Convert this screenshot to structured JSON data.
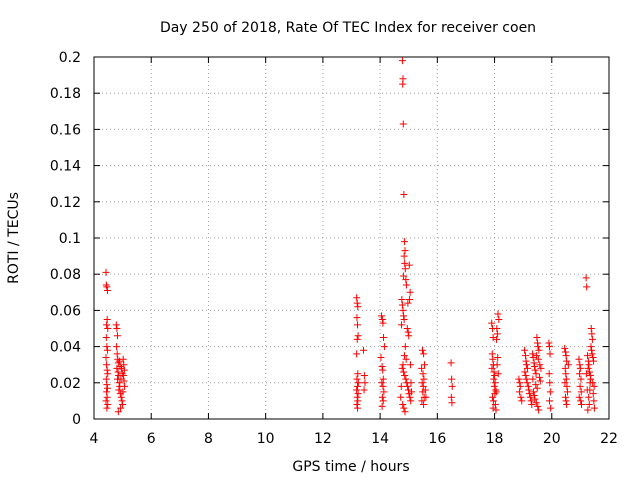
{
  "chart_data": {
    "type": "scatter",
    "title": "Day 250 of 2018, Rate Of TEC Index for receiver coen",
    "xlabel": "GPS time / hours",
    "ylabel": "ROTI / TECUs",
    "xlim": [
      4,
      22
    ],
    "ylim": [
      0,
      0.2
    ],
    "x_ticks": [
      "4",
      "6",
      "8",
      "10",
      "12",
      "14",
      "16",
      "18",
      "20",
      "22"
    ],
    "y_ticks": [
      "0",
      "0.02",
      "0.04",
      "0.06",
      "0.08",
      "0.1",
      "0.12",
      "0.14",
      "0.16",
      "0.18",
      "0.2"
    ],
    "grid": true,
    "marker": "+",
    "marker_color": "#ff0000",
    "series": [
      {
        "name": "ROTI",
        "points": [
          [
            4.42,
            0.081
          ],
          [
            4.43,
            0.074
          ],
          [
            4.45,
            0.073
          ],
          [
            4.47,
            0.071
          ],
          [
            4.46,
            0.055
          ],
          [
            4.44,
            0.052
          ],
          [
            4.48,
            0.05
          ],
          [
            4.43,
            0.045
          ],
          [
            4.45,
            0.04
          ],
          [
            4.47,
            0.038
          ],
          [
            4.42,
            0.034
          ],
          [
            4.44,
            0.03
          ],
          [
            4.46,
            0.027
          ],
          [
            4.48,
            0.025
          ],
          [
            4.43,
            0.022
          ],
          [
            4.45,
            0.019
          ],
          [
            4.47,
            0.017
          ],
          [
            4.44,
            0.015
          ],
          [
            4.46,
            0.012
          ],
          [
            4.42,
            0.01
          ],
          [
            4.48,
            0.008
          ],
          [
            4.45,
            0.006
          ],
          [
            4.78,
            0.052
          ],
          [
            4.8,
            0.05
          ],
          [
            4.82,
            0.046
          ],
          [
            4.79,
            0.04
          ],
          [
            4.81,
            0.036
          ],
          [
            4.83,
            0.033
          ],
          [
            4.85,
            0.031
          ],
          [
            4.8,
            0.028
          ],
          [
            4.84,
            0.026
          ],
          [
            4.86,
            0.024
          ],
          [
            4.82,
            0.022
          ],
          [
            4.88,
            0.02
          ],
          [
            4.9,
            0.018
          ],
          [
            4.87,
            0.016
          ],
          [
            4.92,
            0.014
          ],
          [
            4.95,
            0.012
          ],
          [
            4.98,
            0.01
          ],
          [
            5.0,
            0.008
          ],
          [
            4.93,
            0.006
          ],
          [
            4.85,
            0.004
          ],
          [
            5.02,
            0.033
          ],
          [
            5.04,
            0.03
          ],
          [
            5.06,
            0.027
          ],
          [
            5.03,
            0.024
          ],
          [
            5.05,
            0.021
          ],
          [
            5.07,
            0.018
          ],
          [
            4.96,
            0.028
          ],
          [
            4.99,
            0.025
          ],
          [
            5.01,
            0.015
          ],
          [
            4.89,
            0.032
          ],
          [
            4.91,
            0.029
          ],
          [
            4.94,
            0.022
          ],
          [
            13.18,
            0.067
          ],
          [
            13.2,
            0.064
          ],
          [
            13.22,
            0.062
          ],
          [
            13.19,
            0.056
          ],
          [
            13.21,
            0.052
          ],
          [
            13.23,
            0.046
          ],
          [
            13.2,
            0.044
          ],
          [
            13.18,
            0.036
          ],
          [
            13.22,
            0.025
          ],
          [
            13.19,
            0.022
          ],
          [
            13.24,
            0.02
          ],
          [
            13.21,
            0.018
          ],
          [
            13.18,
            0.016
          ],
          [
            13.23,
            0.014
          ],
          [
            13.2,
            0.012
          ],
          [
            13.22,
            0.01
          ],
          [
            13.19,
            0.008
          ],
          [
            13.21,
            0.006
          ],
          [
            13.42,
            0.038
          ],
          [
            13.45,
            0.024
          ],
          [
            13.47,
            0.02
          ],
          [
            13.44,
            0.016
          ],
          [
            14.05,
            0.057
          ],
          [
            14.08,
            0.055
          ],
          [
            14.1,
            0.053
          ],
          [
            14.12,
            0.045
          ],
          [
            14.07,
            0.029
          ],
          [
            14.09,
            0.027
          ],
          [
            14.11,
            0.022
          ],
          [
            14.06,
            0.02
          ],
          [
            14.1,
            0.018
          ],
          [
            14.13,
            0.015
          ],
          [
            14.08,
            0.012
          ],
          [
            14.11,
            0.01
          ],
          [
            14.07,
            0.007
          ],
          [
            14.15,
            0.04
          ],
          [
            14.03,
            0.034
          ],
          [
            14.78,
            0.198
          ],
          [
            14.8,
            0.188
          ],
          [
            14.79,
            0.185
          ],
          [
            14.81,
            0.163
          ],
          [
            14.83,
            0.124
          ],
          [
            14.85,
            0.098
          ],
          [
            14.87,
            0.093
          ],
          [
            14.84,
            0.09
          ],
          [
            14.86,
            0.086
          ],
          [
            14.88,
            0.083
          ],
          [
            14.82,
            0.079
          ],
          [
            14.9,
            0.077
          ],
          [
            14.92,
            0.074
          ],
          [
            14.76,
            0.066
          ],
          [
            14.78,
            0.063
          ],
          [
            14.8,
            0.06
          ],
          [
            14.82,
            0.057
          ],
          [
            14.84,
            0.055
          ],
          [
            14.75,
            0.052
          ],
          [
            14.95,
            0.05
          ],
          [
            14.98,
            0.048
          ],
          [
            15.0,
            0.046
          ],
          [
            15.02,
            0.085
          ],
          [
            15.05,
            0.07
          ],
          [
            15.03,
            0.066
          ],
          [
            14.97,
            0.064
          ],
          [
            14.88,
            0.04
          ],
          [
            14.85,
            0.035
          ],
          [
            14.8,
            0.03
          ],
          [
            14.77,
            0.028
          ],
          [
            14.82,
            0.026
          ],
          [
            14.86,
            0.024
          ],
          [
            14.9,
            0.022
          ],
          [
            14.93,
            0.02
          ],
          [
            14.96,
            0.018
          ],
          [
            14.99,
            0.016
          ],
          [
            15.01,
            0.014
          ],
          [
            15.04,
            0.012
          ],
          [
            15.07,
            0.01
          ],
          [
            14.79,
            0.008
          ],
          [
            14.83,
            0.006
          ],
          [
            14.87,
            0.004
          ],
          [
            15.08,
            0.02
          ],
          [
            15.1,
            0.015
          ],
          [
            14.74,
            0.018
          ],
          [
            14.72,
            0.012
          ],
          [
            15.06,
            0.03
          ],
          [
            14.91,
            0.033
          ],
          [
            15.48,
            0.038
          ],
          [
            15.52,
            0.036
          ],
          [
            15.55,
            0.03
          ],
          [
            15.45,
            0.028
          ],
          [
            15.5,
            0.025
          ],
          [
            15.53,
            0.022
          ],
          [
            15.47,
            0.02
          ],
          [
            15.51,
            0.018
          ],
          [
            15.49,
            0.015
          ],
          [
            15.54,
            0.012
          ],
          [
            15.46,
            0.01
          ],
          [
            15.52,
            0.008
          ],
          [
            15.58,
            0.016
          ],
          [
            15.6,
            0.012
          ],
          [
            16.48,
            0.031
          ],
          [
            16.5,
            0.022
          ],
          [
            16.52,
            0.018
          ],
          [
            16.49,
            0.012
          ],
          [
            16.51,
            0.009
          ],
          [
            17.9,
            0.053
          ],
          [
            17.93,
            0.05
          ],
          [
            17.95,
            0.045
          ],
          [
            17.92,
            0.036
          ],
          [
            17.94,
            0.033
          ],
          [
            17.96,
            0.03
          ],
          [
            17.91,
            0.028
          ],
          [
            17.98,
            0.026
          ],
          [
            18.0,
            0.024
          ],
          [
            17.97,
            0.022
          ],
          [
            18.02,
            0.02
          ],
          [
            17.99,
            0.018
          ],
          [
            18.04,
            0.016
          ],
          [
            18.01,
            0.014
          ],
          [
            17.93,
            0.012
          ],
          [
            17.96,
            0.01
          ],
          [
            18.03,
            0.008
          ],
          [
            17.95,
            0.006
          ],
          [
            18.05,
            0.005
          ],
          [
            18.08,
            0.05
          ],
          [
            18.1,
            0.047
          ],
          [
            18.12,
            0.058
          ],
          [
            18.15,
            0.055
          ],
          [
            18.07,
            0.044
          ],
          [
            18.09,
            0.03
          ],
          [
            18.11,
            0.034
          ],
          [
            18.13,
            0.025
          ],
          [
            18.06,
            0.015
          ],
          [
            18.85,
            0.022
          ],
          [
            18.88,
            0.02
          ],
          [
            18.9,
            0.018
          ],
          [
            18.87,
            0.015
          ],
          [
            18.92,
            0.012
          ],
          [
            18.95,
            0.01
          ],
          [
            19.05,
            0.038
          ],
          [
            19.08,
            0.035
          ],
          [
            19.1,
            0.032
          ],
          [
            19.12,
            0.03
          ],
          [
            19.15,
            0.028
          ],
          [
            19.06,
            0.026
          ],
          [
            19.09,
            0.024
          ],
          [
            19.11,
            0.022
          ],
          [
            19.14,
            0.02
          ],
          [
            19.18,
            0.018
          ],
          [
            19.2,
            0.016
          ],
          [
            19.22,
            0.014
          ],
          [
            19.25,
            0.012
          ],
          [
            19.28,
            0.01
          ],
          [
            19.3,
            0.008
          ],
          [
            19.33,
            0.036
          ],
          [
            19.35,
            0.034
          ],
          [
            19.38,
            0.031
          ],
          [
            19.4,
            0.029
          ],
          [
            19.42,
            0.027
          ],
          [
            19.45,
            0.025
          ],
          [
            19.48,
            0.045
          ],
          [
            19.5,
            0.042
          ],
          [
            19.52,
            0.04
          ],
          [
            19.55,
            0.038
          ],
          [
            19.47,
            0.035
          ],
          [
            19.53,
            0.033
          ],
          [
            19.57,
            0.023
          ],
          [
            19.6,
            0.021
          ],
          [
            19.44,
            0.019
          ],
          [
            19.49,
            0.017
          ],
          [
            19.36,
            0.015
          ],
          [
            19.39,
            0.013
          ],
          [
            19.41,
            0.011
          ],
          [
            19.46,
            0.009
          ],
          [
            19.51,
            0.007
          ],
          [
            19.54,
            0.005
          ],
          [
            19.58,
            0.03
          ],
          [
            19.62,
            0.028
          ],
          [
            19.34,
            0.022
          ],
          [
            19.9,
            0.042
          ],
          [
            19.92,
            0.04
          ],
          [
            19.94,
            0.036
          ],
          [
            19.91,
            0.025
          ],
          [
            19.93,
            0.02
          ],
          [
            19.95,
            0.015
          ],
          [
            19.92,
            0.01
          ],
          [
            19.96,
            0.006
          ],
          [
            20.45,
            0.039
          ],
          [
            20.48,
            0.037
          ],
          [
            20.5,
            0.035
          ],
          [
            20.52,
            0.032
          ],
          [
            20.47,
            0.028
          ],
          [
            20.49,
            0.025
          ],
          [
            20.51,
            0.022
          ],
          [
            20.46,
            0.02
          ],
          [
            20.53,
            0.018
          ],
          [
            20.55,
            0.015
          ],
          [
            20.48,
            0.012
          ],
          [
            20.5,
            0.01
          ],
          [
            20.52,
            0.008
          ],
          [
            20.58,
            0.03
          ],
          [
            20.95,
            0.033
          ],
          [
            20.98,
            0.03
          ],
          [
            21.0,
            0.028
          ],
          [
            20.97,
            0.025
          ],
          [
            21.02,
            0.022
          ],
          [
            20.99,
            0.018
          ],
          [
            21.03,
            0.015
          ],
          [
            20.96,
            0.012
          ],
          [
            21.01,
            0.01
          ],
          [
            21.04,
            0.008
          ],
          [
            21.2,
            0.078
          ],
          [
            21.22,
            0.073
          ],
          [
            21.25,
            0.035
          ],
          [
            21.28,
            0.032
          ],
          [
            21.3,
            0.03
          ],
          [
            21.27,
            0.028
          ],
          [
            21.32,
            0.026
          ],
          [
            21.35,
            0.024
          ],
          [
            21.38,
            0.05
          ],
          [
            21.4,
            0.047
          ],
          [
            21.42,
            0.044
          ],
          [
            21.37,
            0.04
          ],
          [
            21.39,
            0.038
          ],
          [
            21.41,
            0.036
          ],
          [
            21.44,
            0.034
          ],
          [
            21.46,
            0.032
          ],
          [
            21.36,
            0.022
          ],
          [
            21.43,
            0.02
          ],
          [
            21.48,
            0.018
          ],
          [
            21.33,
            0.016
          ],
          [
            21.45,
            0.014
          ],
          [
            21.29,
            0.012
          ],
          [
            21.47,
            0.01
          ],
          [
            21.31,
            0.008
          ],
          [
            21.26,
            0.005
          ],
          [
            21.49,
            0.006
          ],
          [
            21.24,
            0.016
          ],
          [
            21.34,
            0.02
          ],
          [
            21.21,
            0.025
          ]
        ]
      }
    ]
  }
}
